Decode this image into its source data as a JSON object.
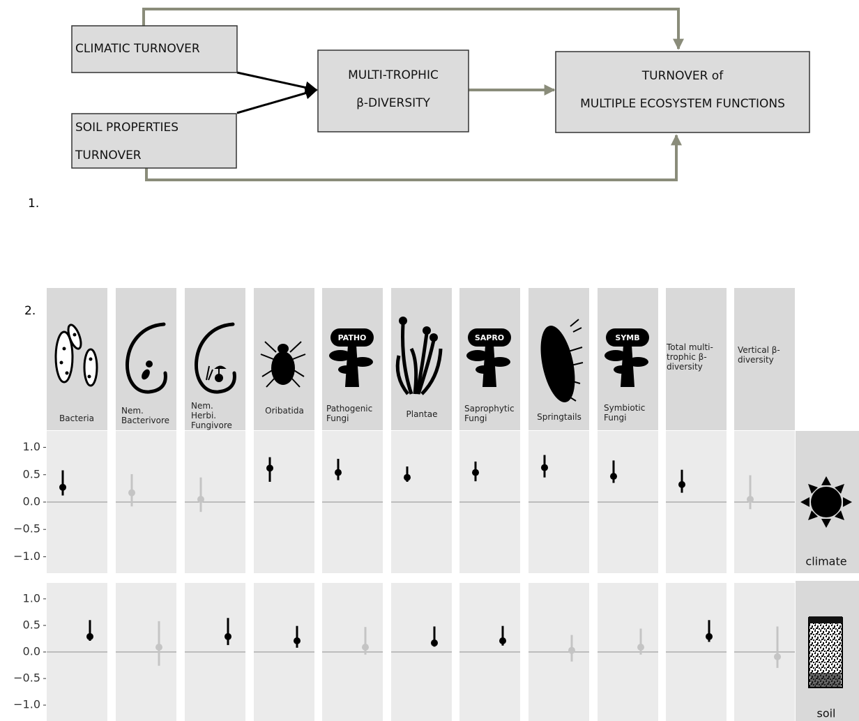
{
  "panel_labels": [
    "1.",
    "2."
  ],
  "diagram": {
    "nodes": [
      {
        "lines": [
          "CLIMATIC TURNOVER"
        ]
      },
      {
        "lines": [
          "SOIL PROPERTIES",
          "TURNOVER"
        ]
      },
      {
        "lines": [
          "MULTI-TROPHIC",
          "β-DIVERSITY"
        ]
      },
      {
        "lines": [
          "TURNOVER of",
          "MULTIPLE ECOSYSTEM FUNCTIONS"
        ]
      }
    ]
  },
  "chart_data": {
    "type": "errorbar",
    "categories": [
      "Bacteria",
      "Nem. Bacterivore",
      "Nem. Herbi. Fungivore",
      "Oribatida",
      "Pathogenic Fungi",
      "Plantae",
      "Saprophytic Fungi",
      "Springtails",
      "Symbiotic Fungi",
      "Total multi-trophic β-diversity",
      "Vertical β-diversity"
    ],
    "icon_labels": [
      null,
      null,
      null,
      null,
      "PATHO",
      null,
      "SAPRO",
      null,
      "SYMB",
      null,
      null
    ],
    "ylim": [
      -1.3,
      1.3
    ],
    "yticks": [
      {
        "value": 1,
        "label": "1.0"
      },
      {
        "value": 0.5,
        "label": "0.5"
      },
      {
        "value": 0,
        "label": "0.0"
      },
      {
        "value": -0.5,
        "label": "−0.5"
      },
      {
        "value": -1,
        "label": "−1.0"
      }
    ],
    "zero_line": true,
    "rows": [
      {
        "name": "climate",
        "values": [
          0.27,
          0.17,
          0.05,
          0.62,
          0.54,
          0.45,
          0.54,
          0.63,
          0.47,
          0.32,
          0.05
        ],
        "lower": [
          0.12,
          -0.08,
          -0.18,
          0.37,
          0.4,
          0.37,
          0.38,
          0.45,
          0.35,
          0.17,
          -0.13
        ],
        "upper": [
          0.58,
          0.51,
          0.45,
          0.82,
          0.79,
          0.65,
          0.74,
          0.86,
          0.76,
          0.59,
          0.49
        ],
        "colors": [
          "#000000",
          "#c4c4c4",
          "#c4c4c4",
          "#000000",
          "#000000",
          "#000000",
          "#000000",
          "#000000",
          "#000000",
          "#000000",
          "#c4c4c4"
        ]
      },
      {
        "name": "soil",
        "values": [
          0.29,
          0.09,
          0.29,
          0.21,
          0.09,
          0.17,
          0.21,
          0.03,
          0.09,
          0.29,
          -0.09
        ],
        "lower": [
          0.21,
          -0.26,
          0.13,
          0.08,
          -0.05,
          0.1,
          0.12,
          -0.18,
          -0.05,
          0.19,
          -0.3
        ],
        "upper": [
          0.6,
          0.58,
          0.64,
          0.49,
          0.47,
          0.48,
          0.49,
          0.32,
          0.44,
          0.6,
          0.48
        ],
        "colors": [
          "#000000",
          "#c4c4c4",
          "#000000",
          "#000000",
          "#c4c4c4",
          "#000000",
          "#000000",
          "#c4c4c4",
          "#c4c4c4",
          "#000000",
          "#c4c4c4"
        ]
      }
    ]
  }
}
